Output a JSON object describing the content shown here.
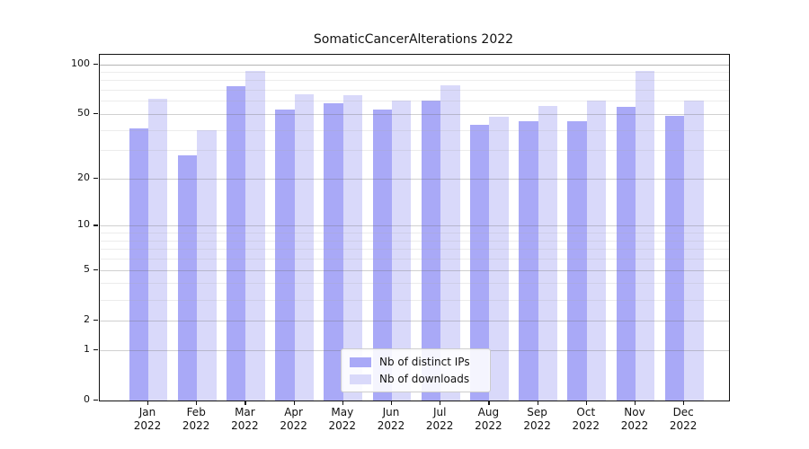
{
  "chart_data": {
    "type": "bar",
    "title": "SomaticCancerAlterations 2022",
    "categories": [
      "Jan",
      "Feb",
      "Mar",
      "Apr",
      "May",
      "Jun",
      "Jul",
      "Aug",
      "Sep",
      "Oct",
      "Nov",
      "Dec"
    ],
    "year_label": "2022",
    "series": [
      {
        "name": "Nb of distinct IPs",
        "color": "#a9a9f7",
        "values": [
          41,
          28,
          74,
          53,
          58,
          53,
          60,
          43,
          45,
          45,
          55,
          49
        ]
      },
      {
        "name": "Nb of downloads",
        "color": "#d9d9fa",
        "values": [
          62,
          40,
          91,
          66,
          65,
          60,
          75,
          48,
          56,
          60,
          91,
          60
        ]
      }
    ],
    "yscale": "log1p",
    "ylim": [
      0,
      114
    ],
    "yticks": [
      100,
      50,
      20,
      10,
      5,
      2,
      1,
      0
    ],
    "minor_gridlines": [
      3,
      4,
      6,
      7,
      8,
      9,
      30,
      40,
      60,
      70,
      80,
      90
    ],
    "grid": "on",
    "legend_position": "bottom-center",
    "frame_color": "#111111",
    "background_color": "#ffffff"
  }
}
